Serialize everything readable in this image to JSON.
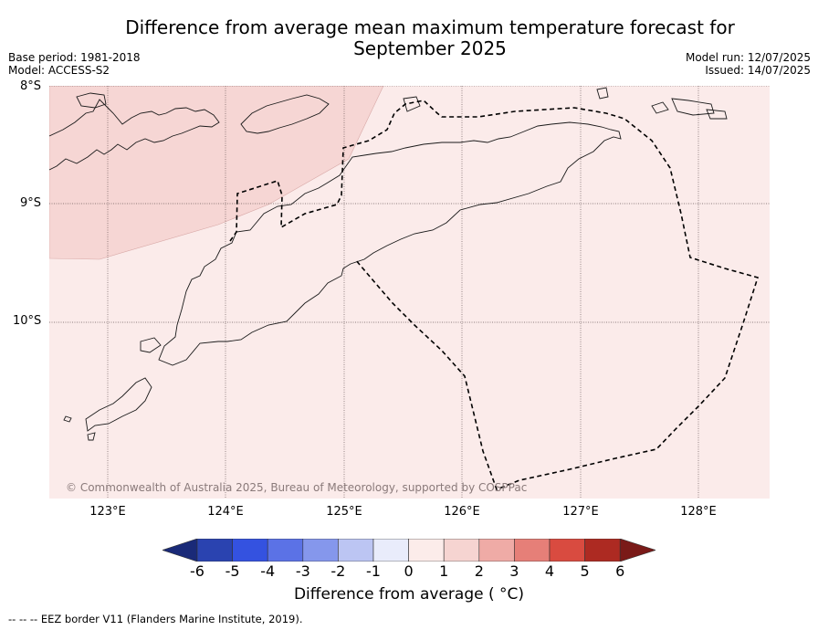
{
  "header": {
    "title_line1": "Difference from average mean maximum temperature forecast for",
    "title_line2": "September 2025",
    "base_period": "Base period: 1981-2018",
    "model": "Model: ACCESS-S2",
    "model_run": "Model run: 12/07/2025",
    "issued": "Issued: 14/07/2025"
  },
  "map": {
    "lat_labels": [
      "8°S",
      "9°S",
      "10°S"
    ],
    "lon_labels": [
      "123°E",
      "124°E",
      "125°E",
      "126°E",
      "127°E",
      "128°E"
    ],
    "copyright": "© Commonwealth of Australia 2025, Bureau of Meteorology, supported by COSPPac",
    "fill_colors": {
      "anomaly_0_to_1": "#fbebea",
      "anomaly_1_to_2": "#f6d6d4"
    }
  },
  "colorbar": {
    "ticks": [
      "-6",
      "-5",
      "-4",
      "-3",
      "-2",
      "-1",
      "0",
      "1",
      "2",
      "3",
      "4",
      "5",
      "6"
    ],
    "colors": [
      "#1a2a78",
      "#2a43b0",
      "#3452e0",
      "#5b72e6",
      "#8597ec",
      "#bcc5f3",
      "#e9ecfb",
      "#fcecea",
      "#f6d4d1",
      "#efaba6",
      "#e67f78",
      "#d94b40",
      "#ad2a22",
      "#7a1a18"
    ],
    "label": "Difference from average ( °C)"
  },
  "footnote": "--  --  -- EEZ border V11 (Flanders Marine Institute, 2019)."
}
